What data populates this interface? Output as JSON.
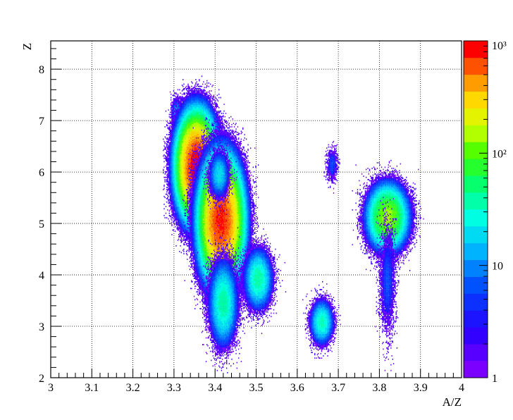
{
  "chart_data": {
    "type": "heatmap",
    "title": "",
    "xlabel": "A/Z",
    "ylabel": "Z",
    "xlim": [
      3,
      4
    ],
    "ylim": [
      2,
      8.55
    ],
    "x_ticks": [
      "3",
      "3.1",
      "3.2",
      "3.3",
      "3.4",
      "3.5",
      "3.6",
      "3.7",
      "3.8",
      "3.9",
      "4"
    ],
    "y_ticks": [
      "2",
      "3",
      "4",
      "5",
      "6",
      "7",
      "8"
    ],
    "grid": true,
    "colorbar": {
      "scale": "log",
      "range": [
        1,
        1000
      ],
      "labels": [
        {
          "value": 1,
          "text": "1"
        },
        {
          "value": 10,
          "text": "10"
        },
        {
          "value": 100,
          "text": "10²"
        },
        {
          "value": 1000,
          "text": "10³"
        }
      ]
    },
    "clusters": [
      {
        "x": 3.308,
        "y": 7.15,
        "peak": 15,
        "sx": 0.007,
        "sy": 0.14
      },
      {
        "x": 3.355,
        "y": 7.0,
        "peak": 25,
        "sx": 0.008,
        "sy": 0.22
      },
      {
        "x": 3.355,
        "y": 6.1,
        "peak": 1000,
        "sx": 0.02,
        "sy": 0.42
      },
      {
        "x": 3.36,
        "y": 5.3,
        "peak": 8,
        "sx": 0.012,
        "sy": 0.3
      },
      {
        "x": 3.415,
        "y": 5.05,
        "peak": 800,
        "sx": 0.022,
        "sy": 0.5
      },
      {
        "x": 3.41,
        "y": 5.95,
        "peak": 20,
        "sx": 0.012,
        "sy": 0.22
      },
      {
        "x": 3.42,
        "y": 3.45,
        "peak": 40,
        "sx": 0.016,
        "sy": 0.38
      },
      {
        "x": 3.505,
        "y": 3.92,
        "peak": 40,
        "sx": 0.016,
        "sy": 0.27
      },
      {
        "x": 3.66,
        "y": 3.08,
        "peak": 35,
        "sx": 0.013,
        "sy": 0.2
      },
      {
        "x": 3.685,
        "y": 6.15,
        "peak": 6,
        "sx": 0.007,
        "sy": 0.17
      },
      {
        "x": 3.82,
        "y": 5.12,
        "peak": 140,
        "sx": 0.022,
        "sy": 0.28
      },
      {
        "x": 3.82,
        "y": 3.9,
        "peak": 6,
        "sx": 0.01,
        "sy": 0.55
      }
    ]
  }
}
